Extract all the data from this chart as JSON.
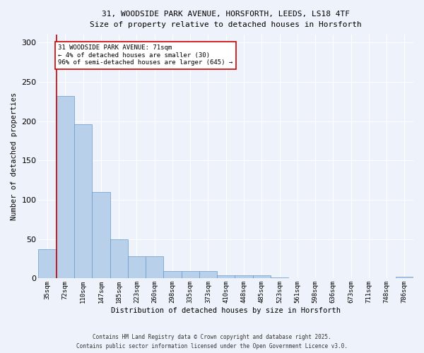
{
  "title_line1": "31, WOODSIDE PARK AVENUE, HORSFORTH, LEEDS, LS18 4TF",
  "title_line2": "Size of property relative to detached houses in Horsforth",
  "xlabel": "Distribution of detached houses by size in Horsforth",
  "ylabel": "Number of detached properties",
  "categories": [
    "35sqm",
    "72sqm",
    "110sqm",
    "147sqm",
    "185sqm",
    "223sqm",
    "260sqm",
    "298sqm",
    "335sqm",
    "373sqm",
    "410sqm",
    "448sqm",
    "485sqm",
    "523sqm",
    "561sqm",
    "598sqm",
    "636sqm",
    "673sqm",
    "711sqm",
    "748sqm",
    "786sqm"
  ],
  "values": [
    37,
    232,
    196,
    110,
    50,
    28,
    28,
    9,
    9,
    9,
    4,
    4,
    4,
    1,
    0,
    0,
    0,
    0,
    0,
    0,
    2
  ],
  "bar_color": "#b8d0ea",
  "bar_edge_color": "#6699cc",
  "annotation_text_line1": "31 WOODSIDE PARK AVENUE: 71sqm",
  "annotation_text_line2": "← 4% of detached houses are smaller (30)",
  "annotation_text_line3": "96% of semi-detached houses are larger (645) →",
  "annotation_box_color": "#ffffff",
  "annotation_box_edge_color": "#cc0000",
  "annotation_line_color": "#cc0000",
  "footer_line1": "Contains HM Land Registry data © Crown copyright and database right 2025.",
  "footer_line2": "Contains public sector information licensed under the Open Government Licence v3.0.",
  "background_color": "#eef2fa",
  "grid_color": "#ffffff",
  "ylim": [
    0,
    310
  ],
  "yticks": [
    0,
    50,
    100,
    150,
    200,
    250,
    300
  ]
}
